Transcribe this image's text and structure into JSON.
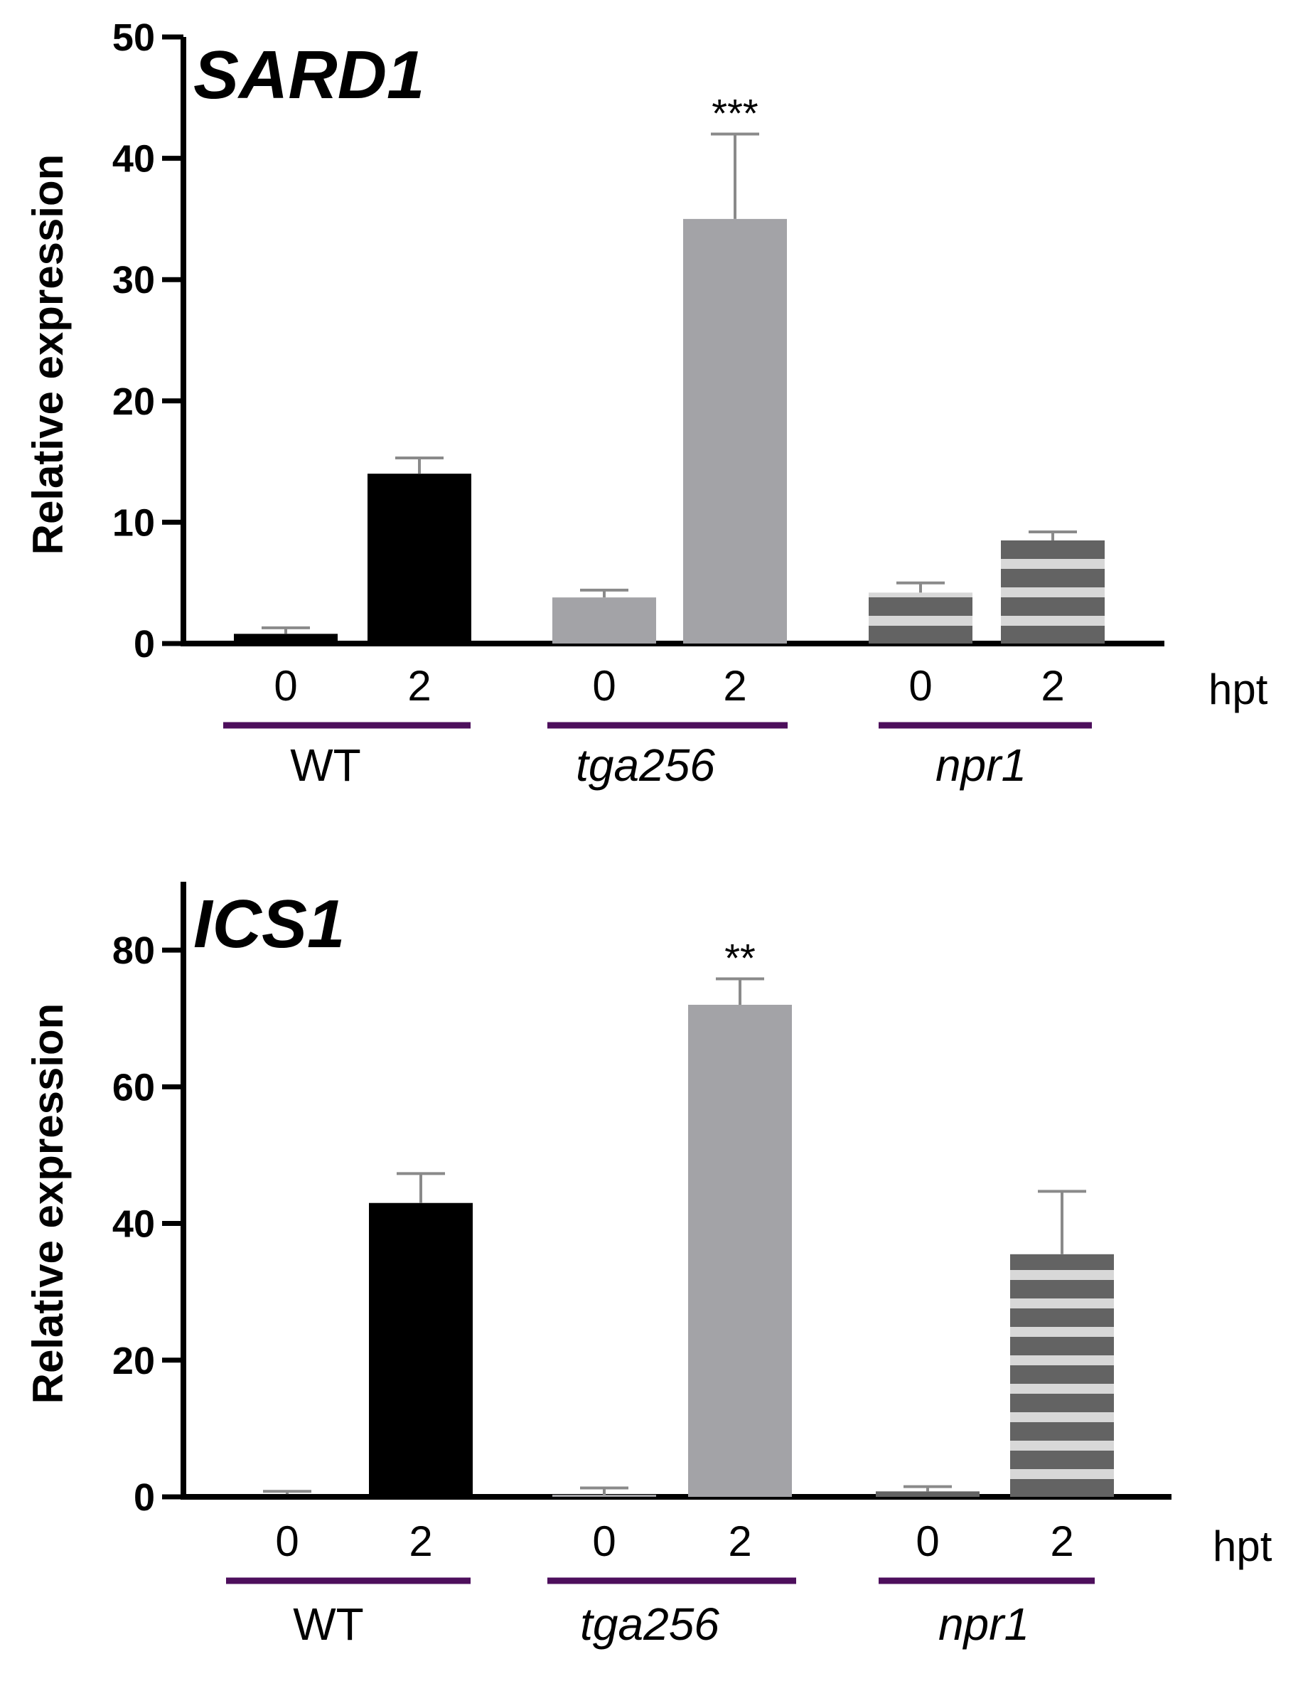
{
  "chart_data": [
    {
      "type": "bar",
      "title": "SARD1",
      "ylabel": "Relative expression",
      "ylim": [
        0,
        50
      ],
      "yticks": [
        "0",
        "10",
        "20",
        "30",
        "40",
        "50"
      ],
      "unit_label": "hpt",
      "groups": [
        {
          "name": "WT",
          "italic": false,
          "color": "#000000",
          "pattern": "solid",
          "bars": [
            {
              "time": "0",
              "value": 0.8,
              "error": 0.5
            },
            {
              "time": "2",
              "value": 14,
              "error": 1.3
            }
          ]
        },
        {
          "name": "tga256",
          "italic": true,
          "color": "#a3a3a7",
          "pattern": "solid",
          "bars": [
            {
              "time": "0",
              "value": 3.8,
              "error": 0.6
            },
            {
              "time": "2",
              "value": 35,
              "error": 7,
              "significance": "***"
            }
          ]
        },
        {
          "name": "npr1",
          "italic": true,
          "color": "#636363",
          "pattern": "stripes",
          "bars": [
            {
              "time": "0",
              "value": 4.2,
              "error": 0.8
            },
            {
              "time": "2",
              "value": 8.5,
              "error": 0.7
            }
          ]
        }
      ]
    },
    {
      "type": "bar",
      "title": "ICS1",
      "ylabel": "Relative expression",
      "ylim": [
        0,
        90
      ],
      "yticks": [
        "0",
        "20",
        "40",
        "60",
        "80"
      ],
      "unit_label": "hpt",
      "groups": [
        {
          "name": "WT",
          "italic": false,
          "color": "#000000",
          "pattern": "solid",
          "bars": [
            {
              "time": "0",
              "value": 0.4,
              "error": 0.4
            },
            {
              "time": "2",
              "value": 43,
              "error": 4.3
            }
          ]
        },
        {
          "name": "tga256",
          "italic": true,
          "color": "#a3a3a7",
          "pattern": "solid",
          "bars": [
            {
              "time": "0",
              "value": 0.3,
              "error": 1.0
            },
            {
              "time": "2",
              "value": 72,
              "error": 3.8,
              "significance": "**"
            }
          ]
        },
        {
          "name": "npr1",
          "italic": true,
          "color": "#636363",
          "pattern": "stripes",
          "bars": [
            {
              "time": "0",
              "value": 0.8,
              "error": 0.7
            },
            {
              "time": "2",
              "value": 35.5,
              "error": 9.2
            }
          ]
        }
      ]
    }
  ],
  "colors": {
    "axis": "#000000",
    "error_bar": "#8a8a8a",
    "group_underline": "#4d0f5c",
    "stripe_light": "#d8d8d8"
  }
}
